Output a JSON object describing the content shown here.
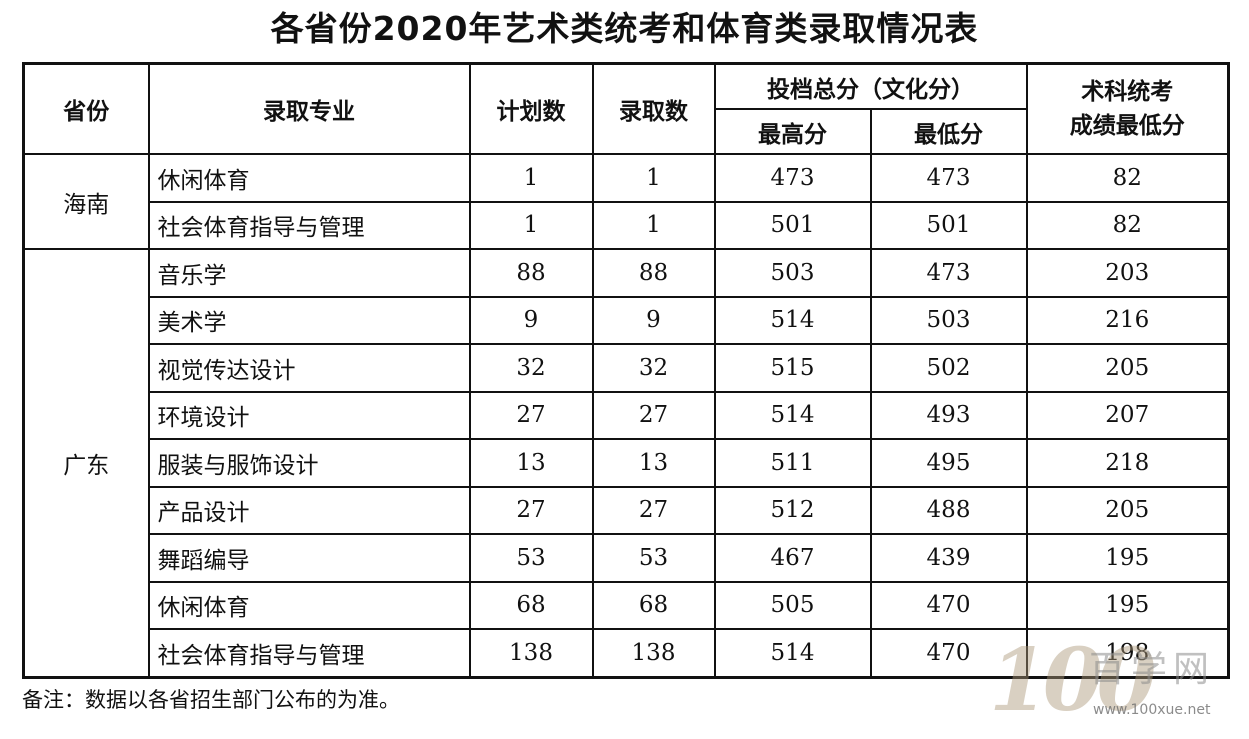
{
  "title": "各省份2020年艺术类统考和体育类录取情况表",
  "headers": {
    "province": "省份",
    "major": "录取专业",
    "plan": "计划数",
    "admitted": "录取数",
    "score_group": "投档总分（文化分）",
    "score_high": "最高分",
    "score_low": "最低分",
    "exam_line1": "术科统考",
    "exam_line2": "成绩最低分"
  },
  "provinces": [
    {
      "name": "海南",
      "rows": [
        {
          "major": "休闲体育",
          "plan": "1",
          "admitted": "1",
          "high": "473",
          "low": "473",
          "exam_min": "82"
        },
        {
          "major": "社会体育指导与管理",
          "plan": "1",
          "admitted": "1",
          "high": "501",
          "low": "501",
          "exam_min": "82"
        }
      ]
    },
    {
      "name": "广东",
      "rows": [
        {
          "major": "音乐学",
          "plan": "88",
          "admitted": "88",
          "high": "503",
          "low": "473",
          "exam_min": "203"
        },
        {
          "major": "美术学",
          "plan": "9",
          "admitted": "9",
          "high": "514",
          "low": "503",
          "exam_min": "216"
        },
        {
          "major": "视觉传达设计",
          "plan": "32",
          "admitted": "32",
          "high": "515",
          "low": "502",
          "exam_min": "205"
        },
        {
          "major": "环境设计",
          "plan": "27",
          "admitted": "27",
          "high": "514",
          "low": "493",
          "exam_min": "207"
        },
        {
          "major": "服装与服饰设计",
          "plan": "13",
          "admitted": "13",
          "high": "511",
          "low": "495",
          "exam_min": "218"
        },
        {
          "major": "产品设计",
          "plan": "27",
          "admitted": "27",
          "high": "512",
          "low": "488",
          "exam_min": "205"
        },
        {
          "major": "舞蹈编导",
          "plan": "53",
          "admitted": "53",
          "high": "467",
          "low": "439",
          "exam_min": "195"
        },
        {
          "major": "休闲体育",
          "plan": "68",
          "admitted": "68",
          "high": "505",
          "low": "470",
          "exam_min": "195"
        },
        {
          "major": "社会体育指导与管理",
          "plan": "138",
          "admitted": "138",
          "high": "514",
          "low": "470",
          "exam_min": "198"
        }
      ]
    }
  ],
  "note": "备注：数据以各省招生部门公布的为准。",
  "watermark": {
    "digits": "100",
    "text": "百学网",
    "url": "www.100xue.net"
  }
}
